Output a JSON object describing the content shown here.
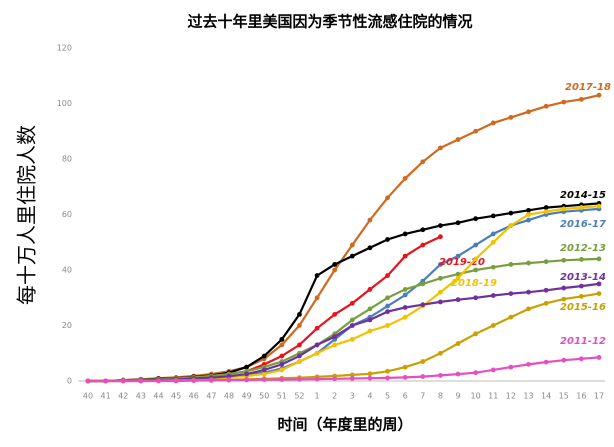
{
  "chart_data": {
    "type": "line",
    "title": "过去十年里美国因为季节性流感住院的情况",
    "y_label": "每十万人里住院人数",
    "x_label": "时间（年度里的周）",
    "categories": [
      "40",
      "41",
      "42",
      "43",
      "44",
      "45",
      "46",
      "47",
      "48",
      "49",
      "50",
      "51",
      "52",
      "1",
      "2",
      "3",
      "4",
      "5",
      "6",
      "7",
      "8",
      "9",
      "10",
      "11",
      "12",
      "13",
      "14",
      "15",
      "16",
      "17"
    ],
    "ylim": [
      0,
      120
    ],
    "yticks": [
      0,
      20,
      40,
      60,
      80,
      100,
      120
    ],
    "grid": false,
    "series": [
      {
        "name": "2017-18",
        "color": "#d0691f",
        "values": [
          0,
          0,
          0.3,
          0.6,
          1,
          1.3,
          1.8,
          2.5,
          3.5,
          5,
          8,
          13,
          20,
          30,
          40,
          49,
          58,
          66,
          73,
          79,
          84,
          87,
          90,
          93,
          95,
          97,
          99,
          100.5,
          101.5,
          103
        ]
      },
      {
        "name": "2014-15",
        "color": "#000000",
        "values": [
          0,
          0,
          0.3,
          0.5,
          0.8,
          1,
          1.5,
          2,
          3,
          5,
          9,
          15,
          24,
          38,
          42,
          45,
          48,
          51,
          53,
          54.5,
          56,
          57,
          58.5,
          59.5,
          60.5,
          61.5,
          62.5,
          63,
          63.5,
          64
        ]
      },
      {
        "name": "2016-17",
        "color": "#4a7ebb",
        "values": [
          0,
          0,
          0,
          0.2,
          0.4,
          0.6,
          0.9,
          1.2,
          1.6,
          2.2,
          3,
          4.5,
          7,
          10,
          15,
          20,
          23,
          27,
          31,
          36,
          42,
          45,
          49,
          53,
          56,
          58,
          60,
          61,
          61.5,
          62
        ]
      },
      {
        "name": "2019-20",
        "color": "#e8141c",
        "values": [
          0,
          0,
          0.2,
          0.4,
          0.6,
          0.9,
          1.3,
          1.8,
          2.5,
          3.5,
          6,
          9,
          13,
          19,
          24,
          28,
          33,
          38,
          45,
          49,
          52,
          null,
          null,
          null,
          null,
          null,
          null,
          null,
          null,
          null
        ]
      },
      {
        "name": "2012-13",
        "color": "#77a03c",
        "values": [
          0,
          0,
          0.2,
          0.4,
          0.6,
          0.9,
          1.3,
          1.8,
          2.5,
          3.5,
          5,
          7,
          10,
          13,
          17,
          22,
          26,
          30,
          33,
          35,
          37,
          38.5,
          40,
          41,
          42,
          42.5,
          43,
          43.5,
          43.8,
          44
        ]
      },
      {
        "name": "2018-19",
        "color": "#f2c200",
        "values": [
          0,
          0,
          0,
          0.2,
          0.3,
          0.5,
          0.7,
          1,
          1.3,
          1.8,
          2.5,
          4,
          7,
          10,
          13,
          15,
          18,
          20,
          23,
          27,
          32,
          37,
          44,
          50,
          56,
          60,
          61,
          62,
          62.5,
          63
        ]
      },
      {
        "name": "2013-14",
        "color": "#7030a0",
        "values": [
          0,
          0,
          0.1,
          0.2,
          0.4,
          0.6,
          0.9,
          1.2,
          1.7,
          2.5,
          4,
          6,
          9,
          13,
          16,
          20,
          22,
          25,
          26.5,
          27.5,
          28.5,
          29.3,
          30,
          30.8,
          31.5,
          32,
          32.7,
          33.5,
          34.2,
          35
        ]
      },
      {
        "name": "2015-16",
        "color": "#c9a000",
        "values": [
          0,
          0,
          0,
          0,
          0.1,
          0.2,
          0.3,
          0.4,
          0.5,
          0.6,
          0.8,
          1,
          1.2,
          1.5,
          1.8,
          2.2,
          2.6,
          3.5,
          5,
          7,
          10,
          13.5,
          17,
          20,
          23,
          26,
          28,
          29.5,
          30.5,
          31.5
        ]
      },
      {
        "name": "2011-12",
        "color": "#e64fc0",
        "values": [
          0,
          0,
          0,
          0,
          0,
          0,
          0.1,
          0.2,
          0.3,
          0.4,
          0.5,
          0.5,
          0.6,
          0.7,
          0.8,
          0.9,
          1,
          1.1,
          1.3,
          1.6,
          2,
          2.5,
          3,
          4,
          5,
          6,
          6.8,
          7.5,
          8,
          8.5
        ]
      }
    ]
  }
}
